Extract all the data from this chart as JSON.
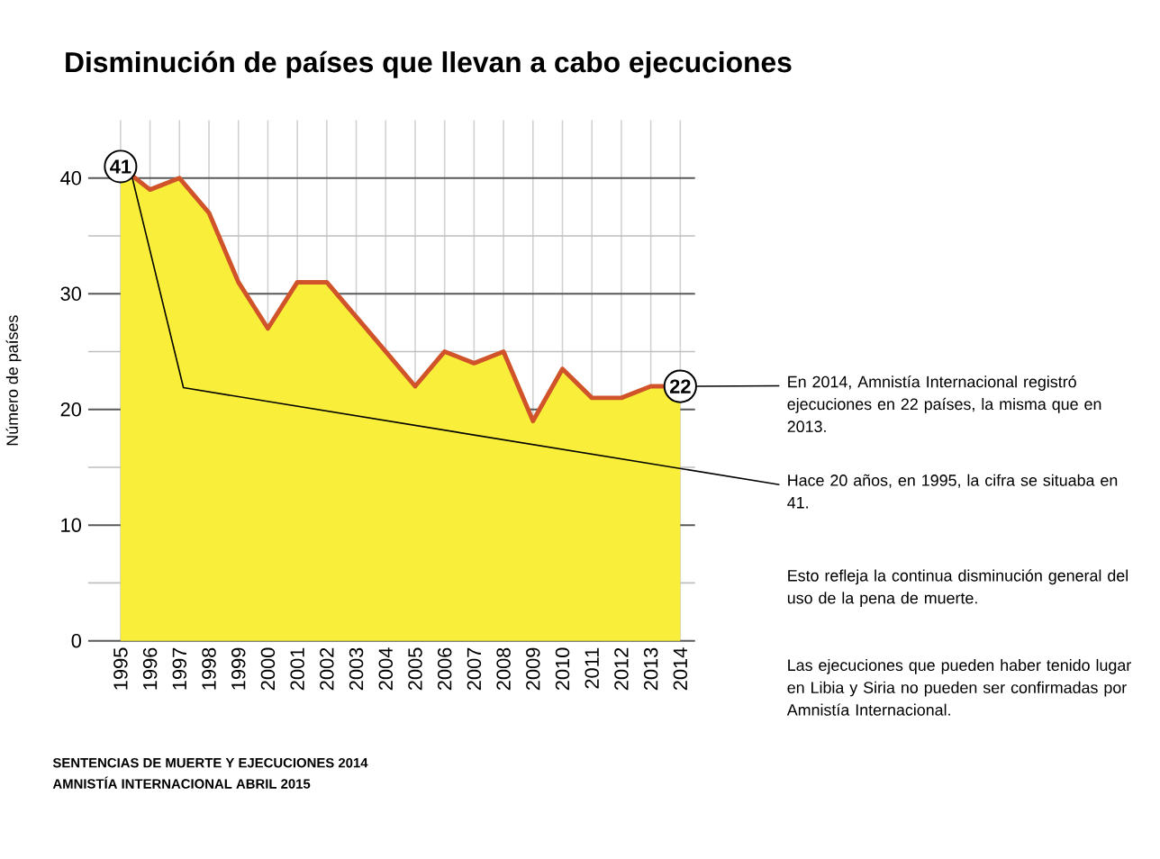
{
  "chart_data": {
    "type": "area",
    "title": "Disminución de países que llevan a cabo ejecuciones",
    "ylabel": "Número de países",
    "categories": [
      "1995",
      "1996",
      "1997",
      "1998",
      "1999",
      "2000",
      "2001",
      "2002",
      "2003",
      "2004",
      "2005",
      "2006",
      "2007",
      "2008",
      "2009",
      "2010",
      "2011",
      "2012",
      "2013",
      "2014"
    ],
    "series": [
      {
        "color": "#f9ef3a",
        "values": [
          41,
          39,
          40,
          37,
          31,
          27,
          31,
          31,
          28,
          25,
          22,
          25,
          24,
          25,
          19,
          23.5,
          21,
          21,
          22,
          22
        ]
      }
    ],
    "ylim": [
      0,
      45
    ],
    "yticks": [
      0,
      10,
      20,
      30,
      40
    ],
    "grid": true,
    "annotations": [
      {
        "text": "22",
        "x": "2014",
        "y": 22
      },
      {
        "text": "41",
        "x": "1995",
        "y": 41
      },
      "En 2014, Amnistía Internacional registró ejecuciones en 22 países, la misma que en 2013.",
      "Hace 20 años, en 1995, la cifra se situaba en 41.",
      "Esto refleja la continua disminución general del uso de la pena de muerte.",
      "Las ejecuciones que pueden haber tenido lugar en Libia y Siria no pueden ser confirmadas por Amnistía Internacional.",
      "SENTENCIAS DE MUERTE Y EJECUCIONES 2014",
      "AMNISTÍA INTERNACIONAL ABRIL 2015"
    ]
  }
}
